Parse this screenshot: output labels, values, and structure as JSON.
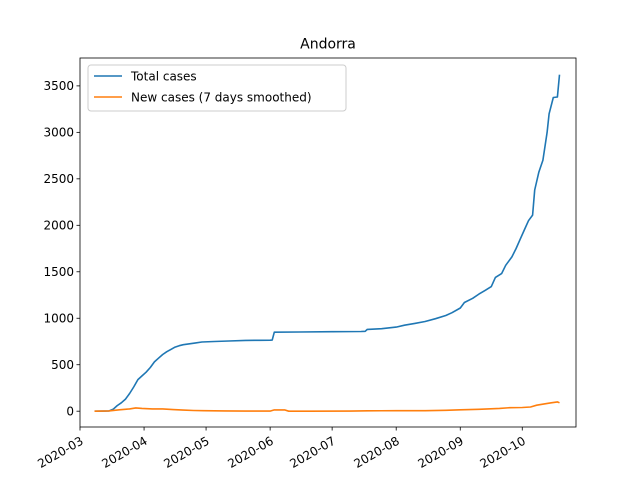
{
  "chart_data": {
    "type": "line",
    "title": "Andorra",
    "xlabel": "",
    "ylabel": "",
    "x_range": [
      "2020-03-01",
      "2020-10-27"
    ],
    "ylim": [
      -170,
      3800
    ],
    "grid": false,
    "legend_position": "top-left",
    "x_ticks": [
      "2020-03",
      "2020-04",
      "2020-05",
      "2020-06",
      "2020-07",
      "2020-08",
      "2020-09",
      "2020-10"
    ],
    "y_ticks": [
      0,
      500,
      1000,
      1500,
      2000,
      2500,
      3000,
      3500
    ],
    "series": [
      {
        "name": "Total cases",
        "color": "#1f77b4",
        "points": [
          [
            "2020-03-08",
            0
          ],
          [
            "2020-03-13",
            1
          ],
          [
            "2020-03-15",
            2
          ],
          [
            "2020-03-17",
            20
          ],
          [
            "2020-03-19",
            60
          ],
          [
            "2020-03-21",
            90
          ],
          [
            "2020-03-23",
            130
          ],
          [
            "2020-03-25",
            190
          ],
          [
            "2020-03-27",
            260
          ],
          [
            "2020-03-29",
            340
          ],
          [
            "2020-03-31",
            380
          ],
          [
            "2020-04-02",
            420
          ],
          [
            "2020-04-04",
            470
          ],
          [
            "2020-04-06",
            530
          ],
          [
            "2020-04-08",
            570
          ],
          [
            "2020-04-10",
            610
          ],
          [
            "2020-04-12",
            640
          ],
          [
            "2020-04-14",
            665
          ],
          [
            "2020-04-16",
            690
          ],
          [
            "2020-04-18",
            705
          ],
          [
            "2020-04-20",
            715
          ],
          [
            "2020-04-23",
            725
          ],
          [
            "2020-04-26",
            735
          ],
          [
            "2020-04-29",
            745
          ],
          [
            "2020-05-05",
            750
          ],
          [
            "2020-05-12",
            755
          ],
          [
            "2020-05-20",
            762
          ],
          [
            "2020-05-27",
            763
          ],
          [
            "2020-06-01",
            764
          ],
          [
            "2020-06-02",
            765
          ],
          [
            "2020-06-03",
            850
          ],
          [
            "2020-06-15",
            852
          ],
          [
            "2020-07-01",
            855
          ],
          [
            "2020-07-15",
            857
          ],
          [
            "2020-07-17",
            860
          ],
          [
            "2020-07-18",
            880
          ],
          [
            "2020-07-25",
            888
          ],
          [
            "2020-08-01",
            905
          ],
          [
            "2020-08-05",
            925
          ],
          [
            "2020-08-10",
            945
          ],
          [
            "2020-08-15",
            965
          ],
          [
            "2020-08-20",
            995
          ],
          [
            "2020-08-25",
            1030
          ],
          [
            "2020-08-28",
            1060
          ],
          [
            "2020-09-01",
            1110
          ],
          [
            "2020-09-03",
            1170
          ],
          [
            "2020-09-07",
            1215
          ],
          [
            "2020-09-10",
            1260
          ],
          [
            "2020-09-13",
            1300
          ],
          [
            "2020-09-16",
            1340
          ],
          [
            "2020-09-18",
            1440
          ],
          [
            "2020-09-21",
            1480
          ],
          [
            "2020-09-23",
            1570
          ],
          [
            "2020-09-26",
            1660
          ],
          [
            "2020-09-28",
            1750
          ],
          [
            "2020-09-30",
            1850
          ],
          [
            "2020-10-02",
            1950
          ],
          [
            "2020-10-04",
            2050
          ],
          [
            "2020-10-06",
            2110
          ],
          [
            "2020-10-07",
            2380
          ],
          [
            "2020-10-09",
            2570
          ],
          [
            "2020-10-11",
            2700
          ],
          [
            "2020-10-13",
            3000
          ],
          [
            "2020-10-14",
            3200
          ],
          [
            "2020-10-16",
            3375
          ],
          [
            "2020-10-18",
            3380
          ],
          [
            "2020-10-19",
            3620
          ]
        ]
      },
      {
        "name": "New cases (7 days smoothed)",
        "color": "#ff7f0e",
        "points": [
          [
            "2020-03-08",
            0
          ],
          [
            "2020-03-15",
            3
          ],
          [
            "2020-03-20",
            15
          ],
          [
            "2020-03-25",
            25
          ],
          [
            "2020-03-28",
            35
          ],
          [
            "2020-03-31",
            30
          ],
          [
            "2020-04-05",
            25
          ],
          [
            "2020-04-10",
            25
          ],
          [
            "2020-04-15",
            17
          ],
          [
            "2020-04-20",
            12
          ],
          [
            "2020-04-25",
            8
          ],
          [
            "2020-04-30",
            5
          ],
          [
            "2020-05-10",
            3
          ],
          [
            "2020-05-20",
            1
          ],
          [
            "2020-06-01",
            1
          ],
          [
            "2020-06-03",
            14
          ],
          [
            "2020-06-08",
            14
          ],
          [
            "2020-06-10",
            0
          ],
          [
            "2020-06-20",
            0
          ],
          [
            "2020-07-10",
            1
          ],
          [
            "2020-07-18",
            4
          ],
          [
            "2020-08-01",
            5
          ],
          [
            "2020-08-15",
            5
          ],
          [
            "2020-08-25",
            10
          ],
          [
            "2020-09-01",
            15
          ],
          [
            "2020-09-10",
            20
          ],
          [
            "2020-09-20",
            30
          ],
          [
            "2020-09-25",
            38
          ],
          [
            "2020-10-01",
            40
          ],
          [
            "2020-10-05",
            45
          ],
          [
            "2020-10-08",
            65
          ],
          [
            "2020-10-12",
            80
          ],
          [
            "2020-10-15",
            90
          ],
          [
            "2020-10-18",
            100
          ],
          [
            "2020-10-19",
            90
          ]
        ]
      }
    ]
  }
}
